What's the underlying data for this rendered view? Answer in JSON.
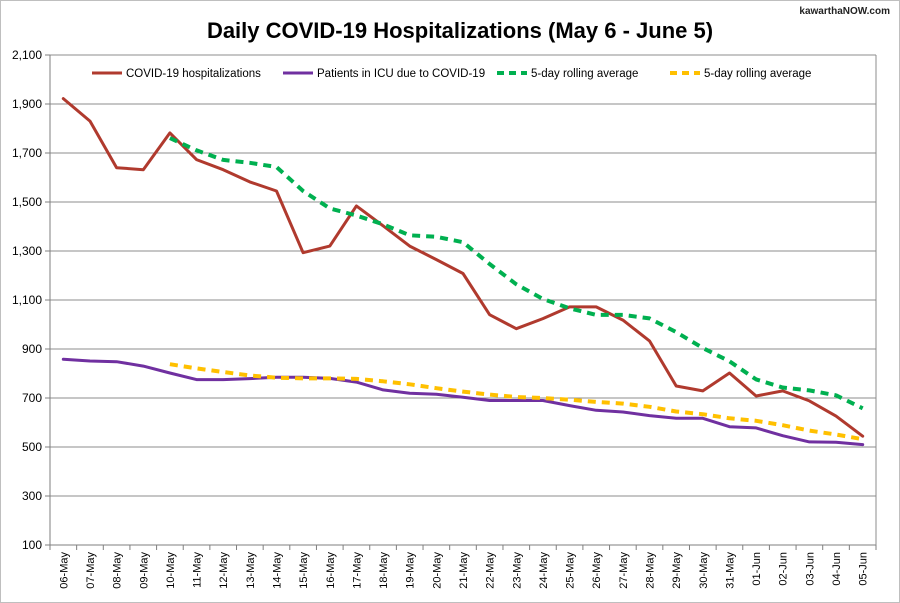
{
  "watermark": "kawarthaNOW.com",
  "chart_data": {
    "type": "line",
    "title": "Daily COVID-19 Hospitalizations (May 6 - June 5)",
    "xlabel": "",
    "ylabel": "",
    "ylim": [
      100,
      2100
    ],
    "yticks": [
      "100",
      "300",
      "500",
      "700",
      "900",
      "1,100",
      "1,300",
      "1,500",
      "1,700",
      "1,900",
      "2,100"
    ],
    "grid": true,
    "legend_position": "top",
    "categories": [
      "06-May",
      "07-May",
      "08-May",
      "09-May",
      "10-May",
      "11-May",
      "12-May",
      "13-May",
      "14-May",
      "15-May",
      "16-May",
      "17-May",
      "18-May",
      "19-May",
      "20-May",
      "21-May",
      "22-May",
      "23-May",
      "24-May",
      "25-May",
      "26-May",
      "27-May",
      "28-May",
      "29-May",
      "30-May",
      "31-May",
      "01-Jun",
      "02-Jun",
      "03-Jun",
      "04-Jun",
      "05-Jun"
    ],
    "series": [
      {
        "name": "COVID-19 hospitalizations",
        "color": "#b03a2e",
        "style": "solid",
        "values": [
          1922,
          1830,
          1640,
          1632,
          1782,
          1673,
          1632,
          1582,
          1545,
          1293,
          1320,
          1484,
          1403,
          1320,
          1265,
          1208,
          1040,
          983,
          1024,
          1072,
          1072,
          1018,
          933,
          749,
          729,
          802,
          708,
          729,
          688,
          626,
          544
        ]
      },
      {
        "name": "Patients in ICU due to COVID-19",
        "color": "#7030a0",
        "style": "solid",
        "values": [
          858,
          851,
          848,
          830,
          802,
          775,
          775,
          779,
          785,
          785,
          780,
          765,
          733,
          719,
          715,
          703,
          690,
          690,
          690,
          669,
          650,
          643,
          628,
          617,
          617,
          583,
          578,
          546,
          521,
          519,
          510
        ]
      },
      {
        "name": "5-day rolling average",
        "color": "#00b050",
        "style": "dashed",
        "values": [
          null,
          null,
          null,
          null,
          1761,
          1711,
          1672,
          1660,
          1643,
          1545,
          1474,
          1445,
          1409,
          1364,
          1358,
          1336,
          1247,
          1164,
          1104,
          1066,
          1039,
          1039,
          1025,
          969,
          904,
          850,
          776,
          743,
          731,
          711,
          658
        ]
      },
      {
        "name": "5-day rolling average",
        "color": "#ffc000",
        "style": "dashed",
        "values": [
          null,
          null,
          null,
          null,
          838,
          821,
          806,
          792,
          783,
          780,
          780,
          778,
          768,
          756,
          740,
          726,
          714,
          704,
          700,
          693,
          684,
          677,
          664,
          645,
          634,
          617,
          607,
          589,
          567,
          551,
          532
        ]
      }
    ]
  }
}
